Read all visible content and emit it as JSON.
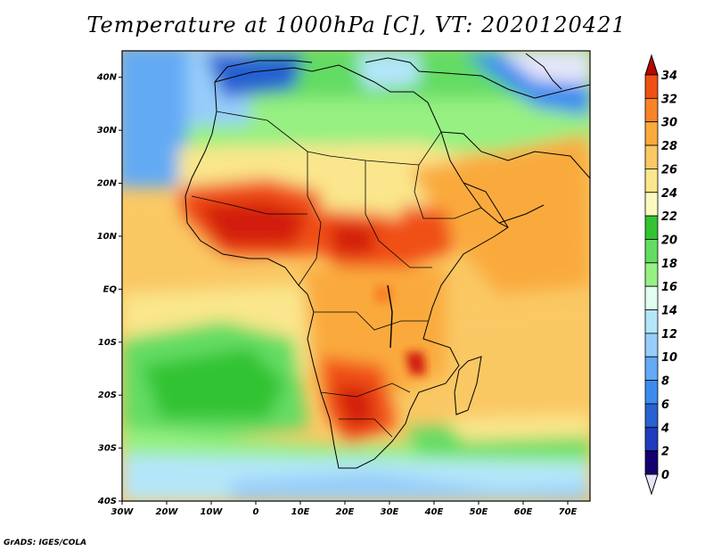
{
  "title": "Temperature at 1000hPa [C], VT: 2020120421",
  "credit": "GrADS: IGES/COLA",
  "map": {
    "lon_range": [
      -30,
      75
    ],
    "lat_range": [
      -40,
      45
    ],
    "lon_ticks": [
      {
        "value": -30,
        "label": "30W"
      },
      {
        "value": -20,
        "label": "20W"
      },
      {
        "value": -10,
        "label": "10W"
      },
      {
        "value": 0,
        "label": "0"
      },
      {
        "value": 10,
        "label": "10E"
      },
      {
        "value": 20,
        "label": "20E"
      },
      {
        "value": 30,
        "label": "30E"
      },
      {
        "value": 40,
        "label": "40E"
      },
      {
        "value": 50,
        "label": "50E"
      },
      {
        "value": 60,
        "label": "60E"
      },
      {
        "value": 70,
        "label": "70E"
      }
    ],
    "lat_ticks": [
      {
        "value": 40,
        "label": "40N"
      },
      {
        "value": 30,
        "label": "30N"
      },
      {
        "value": 20,
        "label": "20N"
      },
      {
        "value": 10,
        "label": "10N"
      },
      {
        "value": 0,
        "label": "EQ"
      },
      {
        "value": -10,
        "label": "10S"
      },
      {
        "value": -20,
        "label": "20S"
      },
      {
        "value": -30,
        "label": "30S"
      },
      {
        "value": -40,
        "label": "40S"
      }
    ]
  },
  "colorbar": {
    "labels": [
      "0",
      "2",
      "4",
      "6",
      "8",
      "10",
      "12",
      "14",
      "16",
      "18",
      "20",
      "22",
      "24",
      "26",
      "28",
      "30",
      "32",
      "34"
    ],
    "colors": [
      "#14006e",
      "#1e3cbe",
      "#2861d2",
      "#3c8cf0",
      "#64aaf5",
      "#96cdfa",
      "#b4e6fa",
      "#e1fff0",
      "#96f082",
      "#64dc64",
      "#32c332",
      "#fafabe",
      "#fae68c",
      "#fac864",
      "#faaa3c",
      "#fa8228",
      "#f05014",
      "#d21e0a"
    ],
    "under_color": "#e6e6fa",
    "over_color": "#b40a00"
  }
}
